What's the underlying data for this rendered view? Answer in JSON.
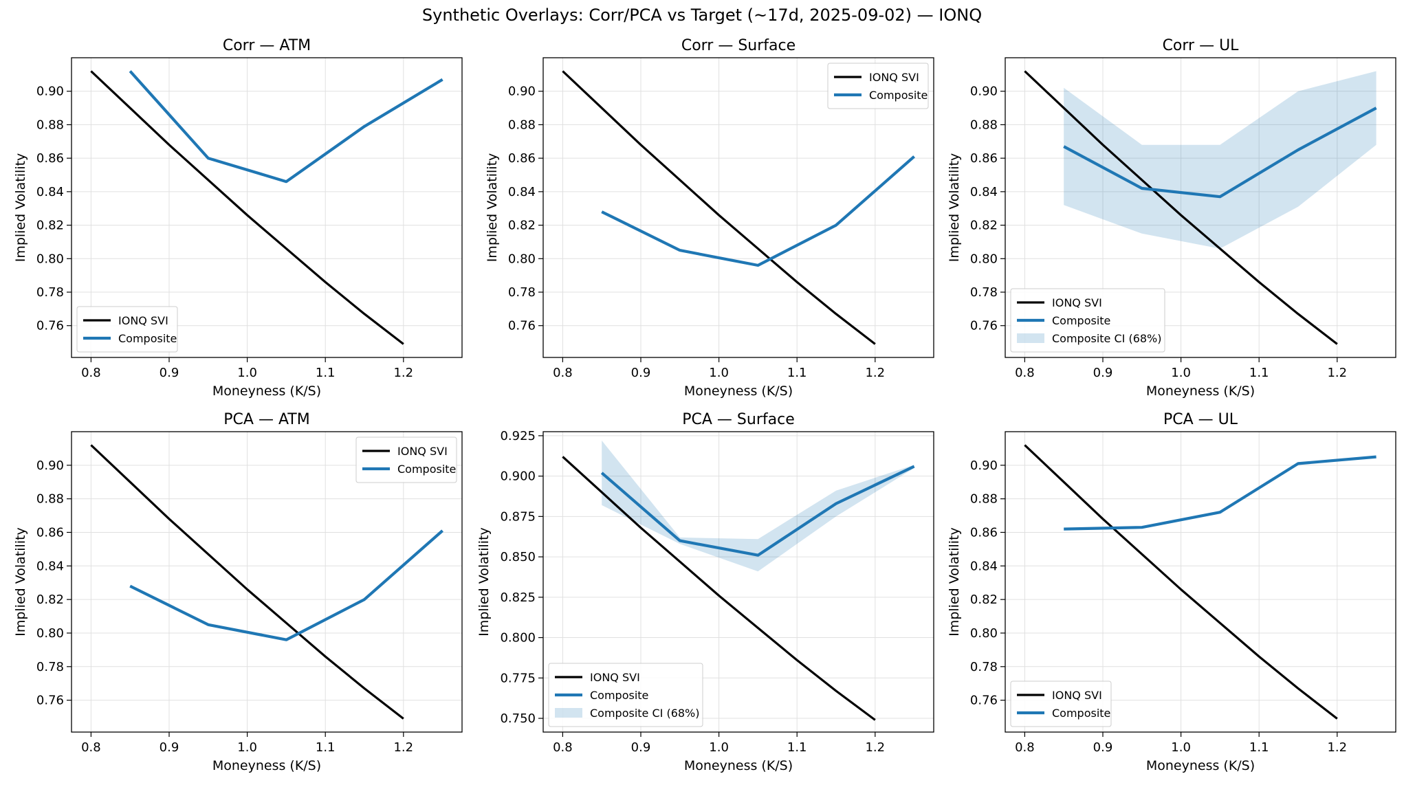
{
  "figure": {
    "title": "Synthetic Overlays: Corr/PCA vs Target (~17d, 2025-09-02) — IONQ"
  },
  "colors": {
    "target": "#000000",
    "composite": "#1f77b4",
    "band": "#1f77b4",
    "grid": "#e0e0e0"
  },
  "chart_data": [
    {
      "type": "line",
      "title": "Corr — ATM",
      "xlabel": "Moneyness (K/S)",
      "ylabel": "Implied Volatility",
      "xlim": [
        0.775,
        1.275
      ],
      "ylim": [
        0.741,
        0.92
      ],
      "xticks": [
        "0.8",
        "0.9",
        "1.0",
        "1.1",
        "1.2"
      ],
      "yticks": [
        "0.76",
        "0.78",
        "0.80",
        "0.82",
        "0.84",
        "0.86",
        "0.88",
        "0.90"
      ],
      "grid": true,
      "legend_position": "lower-left",
      "series": [
        {
          "name": "IONQ SVI",
          "role": "target",
          "x": [
            0.8,
            0.85,
            0.9,
            0.95,
            1.0,
            1.05,
            1.1,
            1.15,
            1.2
          ],
          "y": [
            0.912,
            0.89,
            0.868,
            0.847,
            0.826,
            0.806,
            0.786,
            0.767,
            0.749
          ]
        },
        {
          "name": "Composite",
          "role": "composite",
          "x": [
            0.85,
            0.95,
            1.05,
            1.15,
            1.25
          ],
          "y": [
            0.912,
            0.86,
            0.846,
            0.879,
            0.907
          ]
        }
      ]
    },
    {
      "type": "line",
      "title": "Corr — Surface",
      "xlabel": "Moneyness (K/S)",
      "ylabel": "Implied Volatility",
      "xlim": [
        0.775,
        1.275
      ],
      "ylim": [
        0.741,
        0.92
      ],
      "xticks": [
        "0.8",
        "0.9",
        "1.0",
        "1.1",
        "1.2"
      ],
      "yticks": [
        "0.76",
        "0.78",
        "0.80",
        "0.82",
        "0.84",
        "0.86",
        "0.88",
        "0.90"
      ],
      "grid": true,
      "legend_position": "upper-right",
      "series": [
        {
          "name": "IONQ SVI",
          "role": "target",
          "x": [
            0.8,
            0.85,
            0.9,
            0.95,
            1.0,
            1.05,
            1.1,
            1.15,
            1.2
          ],
          "y": [
            0.912,
            0.89,
            0.868,
            0.847,
            0.826,
            0.806,
            0.786,
            0.767,
            0.749
          ]
        },
        {
          "name": "Composite",
          "role": "composite",
          "x": [
            0.85,
            0.95,
            1.05,
            1.15,
            1.25
          ],
          "y": [
            0.828,
            0.805,
            0.796,
            0.82,
            0.861
          ]
        }
      ]
    },
    {
      "type": "line",
      "title": "Corr — UL",
      "xlabel": "Moneyness (K/S)",
      "ylabel": "Implied Volatility",
      "xlim": [
        0.775,
        1.275
      ],
      "ylim": [
        0.741,
        0.92
      ],
      "xticks": [
        "0.8",
        "0.9",
        "1.0",
        "1.1",
        "1.2"
      ],
      "yticks": [
        "0.76",
        "0.78",
        "0.80",
        "0.82",
        "0.84",
        "0.86",
        "0.88",
        "0.90"
      ],
      "grid": true,
      "legend_position": "lower-left",
      "series": [
        {
          "name": "IONQ SVI",
          "role": "target",
          "x": [
            0.8,
            0.85,
            0.9,
            0.95,
            1.0,
            1.05,
            1.1,
            1.15,
            1.2
          ],
          "y": [
            0.912,
            0.89,
            0.868,
            0.847,
            0.826,
            0.806,
            0.786,
            0.767,
            0.749
          ]
        },
        {
          "name": "Composite",
          "role": "composite",
          "x": [
            0.85,
            0.95,
            1.05,
            1.15,
            1.25
          ],
          "y": [
            0.867,
            0.842,
            0.837,
            0.865,
            0.89
          ]
        }
      ],
      "band": {
        "name": "Composite CI (68%)",
        "x": [
          0.85,
          0.95,
          1.05,
          1.15,
          1.25
        ],
        "lower": [
          0.832,
          0.815,
          0.806,
          0.831,
          0.868
        ],
        "upper": [
          0.902,
          0.868,
          0.868,
          0.9,
          0.912
        ]
      }
    },
    {
      "type": "line",
      "title": "PCA — ATM",
      "xlabel": "Moneyness (K/S)",
      "ylabel": "Implied Volatility",
      "xlim": [
        0.775,
        1.275
      ],
      "ylim": [
        0.741,
        0.92
      ],
      "xticks": [
        "0.8",
        "0.9",
        "1.0",
        "1.1",
        "1.2"
      ],
      "yticks": [
        "0.76",
        "0.78",
        "0.80",
        "0.82",
        "0.84",
        "0.86",
        "0.88",
        "0.90"
      ],
      "grid": true,
      "legend_position": "upper-right",
      "series": [
        {
          "name": "IONQ SVI",
          "role": "target",
          "x": [
            0.8,
            0.85,
            0.9,
            0.95,
            1.0,
            1.05,
            1.1,
            1.15,
            1.2
          ],
          "y": [
            0.912,
            0.89,
            0.868,
            0.847,
            0.826,
            0.806,
            0.786,
            0.767,
            0.749
          ]
        },
        {
          "name": "Composite",
          "role": "composite",
          "x": [
            0.85,
            0.95,
            1.05,
            1.15,
            1.25
          ],
          "y": [
            0.828,
            0.805,
            0.796,
            0.82,
            0.861
          ]
        }
      ]
    },
    {
      "type": "line",
      "title": "PCA — Surface",
      "xlabel": "Moneyness (K/S)",
      "ylabel": "Implied Volatility",
      "xlim": [
        0.775,
        1.275
      ],
      "ylim": [
        0.7415,
        0.9275
      ],
      "xticks": [
        "0.8",
        "0.9",
        "1.0",
        "1.1",
        "1.2"
      ],
      "yticks": [
        "0.750",
        "0.775",
        "0.800",
        "0.825",
        "0.850",
        "0.875",
        "0.900",
        "0.925"
      ],
      "grid": true,
      "legend_position": "lower-left",
      "series": [
        {
          "name": "IONQ SVI",
          "role": "target",
          "x": [
            0.8,
            0.85,
            0.9,
            0.95,
            1.0,
            1.05,
            1.1,
            1.15,
            1.2
          ],
          "y": [
            0.912,
            0.89,
            0.868,
            0.847,
            0.826,
            0.806,
            0.786,
            0.767,
            0.749
          ]
        },
        {
          "name": "Composite",
          "role": "composite",
          "x": [
            0.85,
            0.95,
            1.05,
            1.15,
            1.25
          ],
          "y": [
            0.902,
            0.86,
            0.851,
            0.883,
            0.906
          ]
        }
      ],
      "band": {
        "name": "Composite CI (68%)",
        "x": [
          0.85,
          0.95,
          1.05,
          1.15,
          1.25
        ],
        "lower": [
          0.882,
          0.858,
          0.841,
          0.875,
          0.905
        ],
        "upper": [
          0.922,
          0.862,
          0.861,
          0.891,
          0.907
        ]
      }
    },
    {
      "type": "line",
      "title": "PCA — UL",
      "xlabel": "Moneyness (K/S)",
      "ylabel": "Implied Volatility",
      "xlim": [
        0.775,
        1.275
      ],
      "ylim": [
        0.741,
        0.92
      ],
      "xticks": [
        "0.8",
        "0.9",
        "1.0",
        "1.1",
        "1.2"
      ],
      "yticks": [
        "0.76",
        "0.78",
        "0.80",
        "0.82",
        "0.84",
        "0.86",
        "0.88",
        "0.90"
      ],
      "grid": true,
      "legend_position": "lower-left",
      "series": [
        {
          "name": "IONQ SVI",
          "role": "target",
          "x": [
            0.8,
            0.85,
            0.9,
            0.95,
            1.0,
            1.05,
            1.1,
            1.15,
            1.2
          ],
          "y": [
            0.912,
            0.89,
            0.868,
            0.847,
            0.826,
            0.806,
            0.786,
            0.767,
            0.749
          ]
        },
        {
          "name": "Composite",
          "role": "composite",
          "x": [
            0.85,
            0.95,
            1.05,
            1.15,
            1.25
          ],
          "y": [
            0.862,
            0.863,
            0.872,
            0.901,
            0.905
          ]
        }
      ]
    }
  ]
}
